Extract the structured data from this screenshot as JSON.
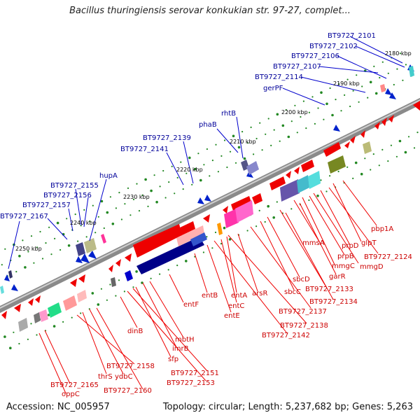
{
  "title": "Bacillus thuringiensis serovar konkukian str. 97-27, complet...",
  "footer": {
    "accession": "Accession: NC_005957",
    "info": "Topology: circular; Length: 5,237,682 bp; Genes: 5,263"
  },
  "kbp_ticks": [
    "2180 kbp",
    "2190 kbp",
    "2200 kbp",
    "2210 kbp",
    "2220 kbp",
    "2230 kbp",
    "2240 kbp",
    "2250 kbp"
  ],
  "labels_top": [
    "BT9727_2101",
    "BT9727_2102",
    "BT9727_2106",
    "BT9727_2107",
    "BT9727_2114",
    "gerPF",
    "rhtB",
    "phaB",
    "BT9727_2139",
    "BT9727_2141",
    "hupA",
    "BT9727_2155",
    "BT9727_2156",
    "BT9727_2157",
    "BT9727_2167"
  ],
  "labels_bottom": [
    "pbp1A",
    "glpT",
    "BT9727_2124",
    "prpD",
    "mmgD",
    "prpB",
    "mmgC",
    "mmsA",
    "garR",
    "sbcD",
    "BT9727_2133",
    "sbcC",
    "BT9727_2134",
    "arsR",
    "BT9727_2137",
    "entA",
    "entC",
    "entB",
    "entE",
    "entF",
    "BT9727_2138",
    "BT9727_2142",
    "mbtH",
    "imrB",
    "sfp",
    "dinB",
    "BT9727_2151",
    "BT9727_2153",
    "BT9727_2158",
    "thrS",
    "ydbC",
    "BT9727_2160",
    "BT9727_2165",
    "oppC"
  ]
}
